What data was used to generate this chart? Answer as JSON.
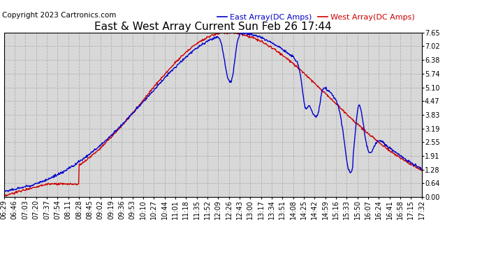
{
  "title": "East & West Array Current Sun Feb 26 17:44",
  "copyright": "Copyright 2023 Cartronics.com",
  "legend_east": "East Array(DC Amps)",
  "legend_west": "West Array(DC Amps)",
  "east_color": "#0000cc",
  "west_color": "#cc0000",
  "bg_color": "#ffffff",
  "plot_bg_color": "#d8d8d8",
  "grid_color": "#b0b0b0",
  "ylim": [
    0.0,
    7.65
  ],
  "yticks": [
    0.0,
    0.64,
    1.28,
    1.91,
    2.55,
    3.19,
    3.83,
    4.47,
    5.1,
    5.74,
    6.38,
    7.02,
    7.65
  ],
  "x_labels": [
    "06:29",
    "06:46",
    "07:03",
    "07:20",
    "07:37",
    "07:54",
    "08:11",
    "08:28",
    "08:45",
    "09:02",
    "09:19",
    "09:36",
    "09:53",
    "10:10",
    "10:27",
    "10:44",
    "11:01",
    "11:18",
    "11:35",
    "11:52",
    "12:09",
    "12:26",
    "12:43",
    "13:00",
    "13:17",
    "13:34",
    "13:51",
    "14:08",
    "14:25",
    "14:42",
    "14:59",
    "15:16",
    "15:33",
    "15:50",
    "16:07",
    "16:24",
    "16:41",
    "16:58",
    "17:15",
    "17:32"
  ],
  "title_fontsize": 11,
  "axis_fontsize": 7,
  "copyright_fontsize": 7.5,
  "legend_fontsize": 8,
  "linewidth": 1.0
}
